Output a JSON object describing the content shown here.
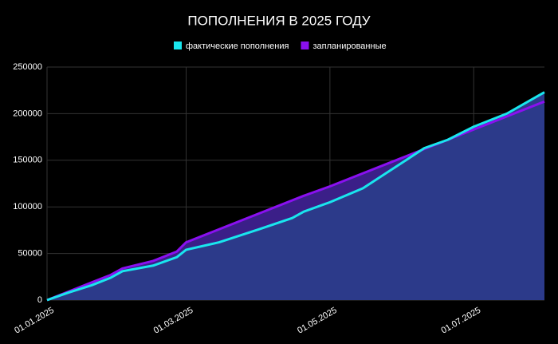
{
  "chart_data": {
    "type": "line",
    "title": "ПОПОЛНЕНИЯ В 2025 ГОДУ",
    "x": [
      "2025-01-01",
      "2025-01-10",
      "2025-01-20",
      "2025-01-28",
      "2025-02-02",
      "2025-02-15",
      "2025-02-25",
      "2025-03-01",
      "2025-03-15",
      "2025-04-01",
      "2025-04-15",
      "2025-04-20",
      "2025-05-01",
      "2025-05-15",
      "2025-06-01",
      "2025-06-10",
      "2025-06-20",
      "2025-07-01",
      "2025-07-15",
      "2025-07-31"
    ],
    "series": [
      {
        "name": "фактические пополнения",
        "color": "#19e6ee",
        "area_color": "#2c3a8a",
        "values": [
          0,
          8000,
          16000,
          24000,
          31000,
          37000,
          46000,
          54000,
          62000,
          76000,
          88000,
          95000,
          105000,
          120000,
          148000,
          163000,
          172000,
          186000,
          200000,
          223000
        ]
      },
      {
        "name": "запланированные",
        "color": "#8a10f0",
        "area_color": "#3b1f88",
        "values": [
          0,
          9000,
          19000,
          27000,
          34000,
          42000,
          52000,
          62000,
          76000,
          93000,
          107000,
          112000,
          122000,
          136000,
          153000,
          162000,
          172000,
          183000,
          197000,
          213000
        ]
      }
    ],
    "xlim": [
      "2025-01-01",
      "2025-07-31"
    ],
    "xticks": [
      {
        "value": "2025-01-01",
        "label": "01.01.2025"
      },
      {
        "value": "2025-03-01",
        "label": "01.03.2025"
      },
      {
        "value": "2025-05-01",
        "label": "01.05.2025"
      },
      {
        "value": "2025-07-01",
        "label": "01.07.2025"
      }
    ],
    "ylim": [
      0,
      250000
    ],
    "yticks": [
      0,
      50000,
      100000,
      150000,
      200000,
      250000
    ],
    "grid": true,
    "legend": "top"
  }
}
